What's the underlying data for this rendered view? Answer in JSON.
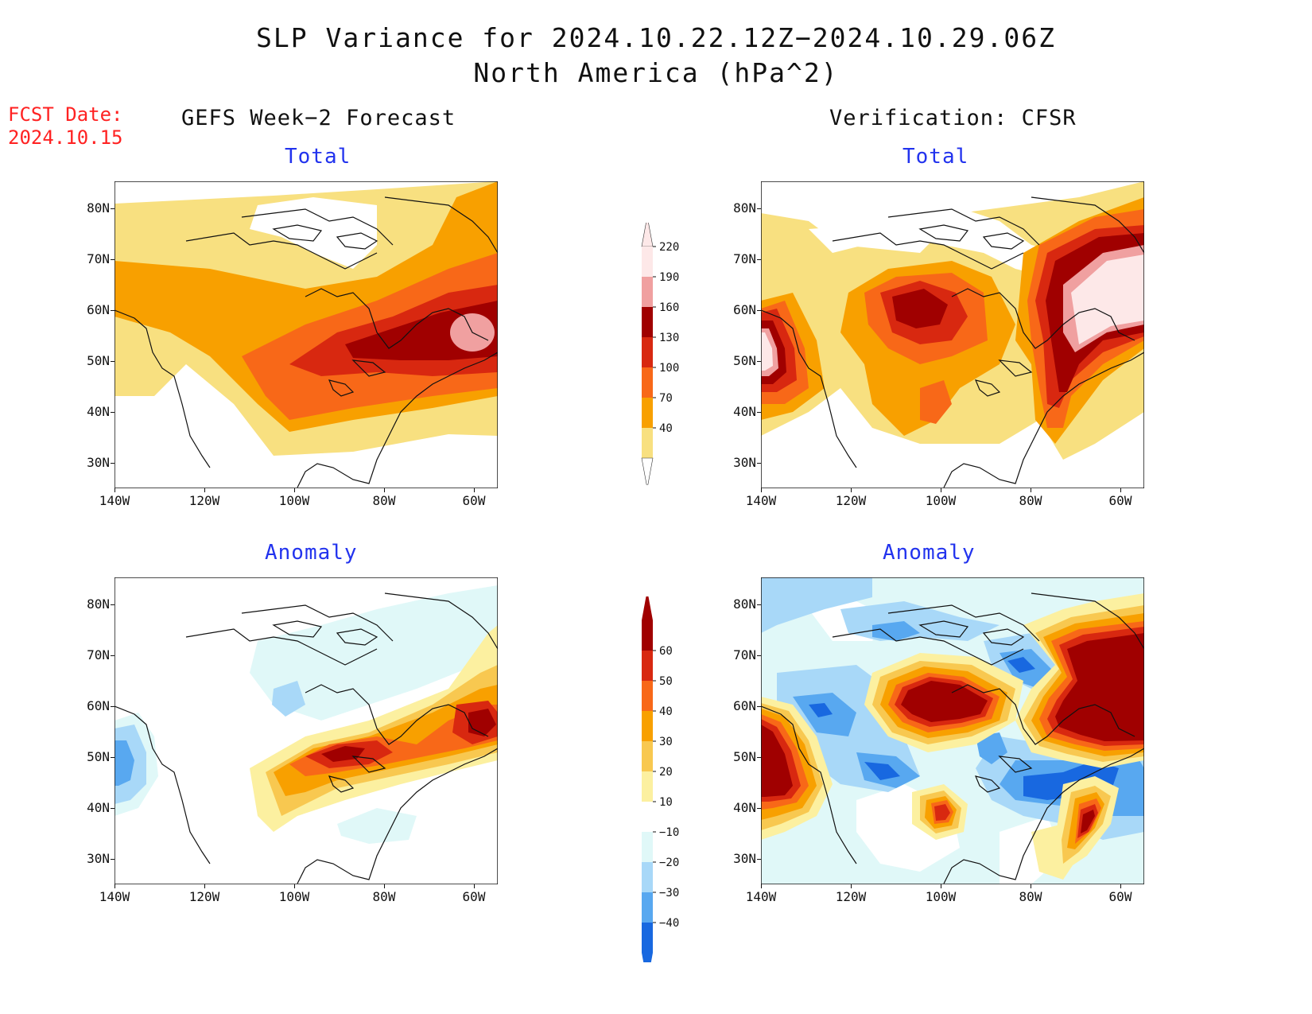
{
  "header": {
    "title": "SLP Variance for 2024.10.22.12Z−2024.10.29.06Z",
    "subtitle": "North America (hPa^2)"
  },
  "fcst": {
    "line1": "FCST Date:",
    "line2": "2024.10.15"
  },
  "columns": {
    "left": "GEFS Week−2 Forecast",
    "right": "Verification: CFSR"
  },
  "panels": {
    "top_left": "Total",
    "top_right": "Total",
    "bottom_left": "Anomaly",
    "bottom_right": "Anomaly"
  },
  "axes": {
    "lat_labels": [
      "80N",
      "70N",
      "60N",
      "50N",
      "40N",
      "30N"
    ],
    "lon_labels": [
      "140W",
      "120W",
      "100W",
      "80W",
      "60W"
    ]
  },
  "colorbar_total": {
    "labels": [
      "220",
      "190",
      "160",
      "130",
      "100",
      "70",
      "40"
    ],
    "colors": [
      "#fde8e8",
      "#f0a0a0",
      "#a00000",
      "#d82810",
      "#f86818",
      "#f8a000",
      "#f8e080",
      "#ffffff"
    ]
  },
  "colorbar_anom": {
    "labels": [
      "60",
      "50",
      "40",
      "30",
      "20",
      "10",
      "−10",
      "−20",
      "−30",
      "−40"
    ],
    "colors": [
      "#a00000",
      "#d82810",
      "#f86818",
      "#f8a000",
      "#f8c850",
      "#fcf0a0",
      "#ffffff",
      "#e0f8f8",
      "#a8d8f8",
      "#58a8f0",
      "#1868e0"
    ]
  }
}
